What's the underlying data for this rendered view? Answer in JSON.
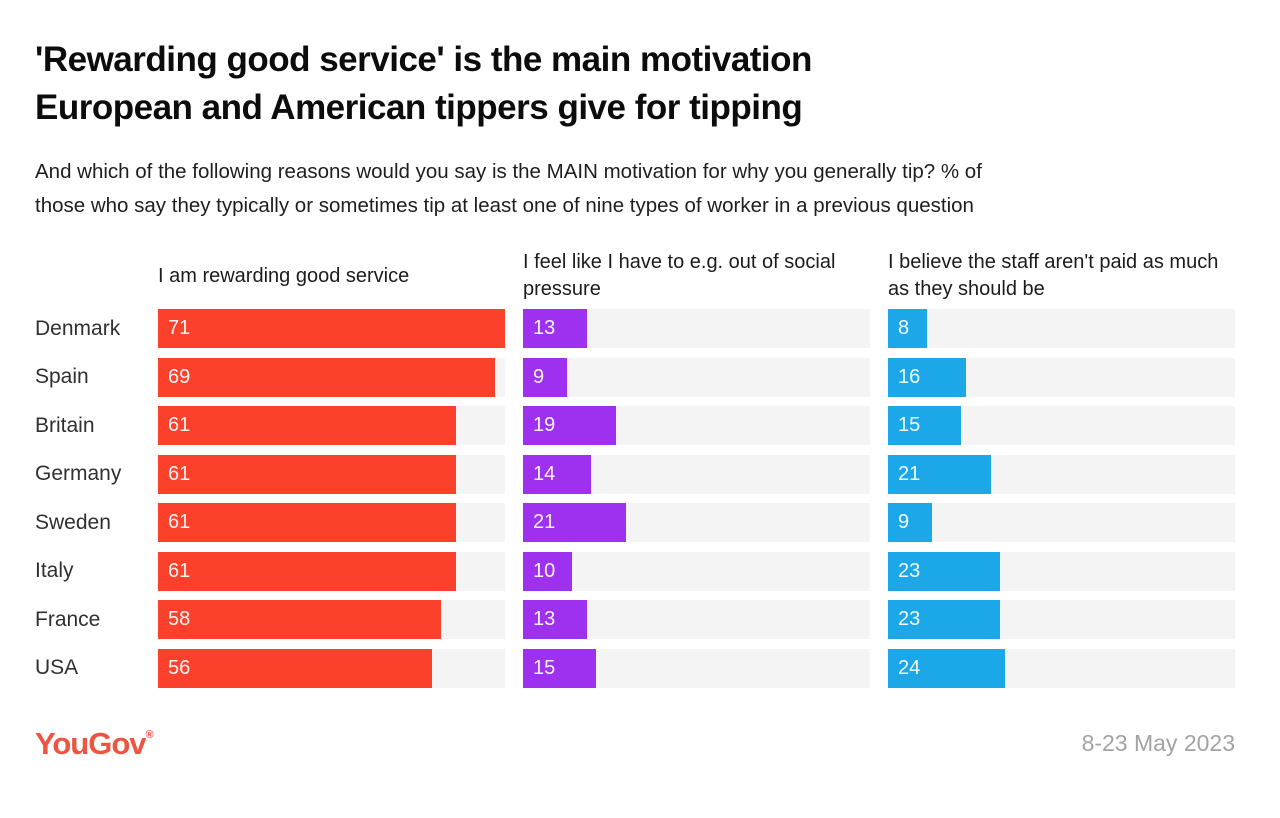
{
  "header": {
    "title": "'Rewarding good service' is the main motivation European and American tippers give for tipping",
    "title_lines": [
      "'Rewarding good service' is the main motivation",
      "European and American tippers give for tipping"
    ],
    "subtitle_lines": [
      "And which of the following reasons would you say is the MAIN motivation for why you generally tip? % of",
      "those who say they typically or sometimes tip at least one of nine types of worker in a previous question"
    ]
  },
  "chart_data": {
    "type": "bar",
    "orientation": "horizontal",
    "title": "'Rewarding good service' is the main motivation European and American tippers give for tipping",
    "subtitle": "And which of the following reasons would you say is the MAIN motivation for why you generally tip? % of those who say they typically or sometimes tip at least one of nine types of worker in a previous question",
    "categories": [
      "Denmark",
      "Spain",
      "Britain",
      "Germany",
      "Sweden",
      "Italy",
      "France",
      "USA"
    ],
    "series": [
      {
        "name": "I am rewarding good service",
        "color": "#FB412C",
        "values": [
          71,
          69,
          61,
          61,
          61,
          61,
          58,
          56
        ]
      },
      {
        "name": "I feel like I have to e.g. out of social pressure",
        "color": "#9E30F0",
        "values": [
          13,
          9,
          19,
          14,
          21,
          10,
          13,
          15
        ]
      },
      {
        "name": "I believe the staff aren't paid as much as they should be",
        "color": "#1BA7E8",
        "values": [
          8,
          16,
          15,
          21,
          9,
          23,
          23,
          24
        ]
      }
    ],
    "xlim": [
      0,
      71
    ],
    "grid": false,
    "legend": "none",
    "value_labels": "inside-start",
    "track_color": "#F4F4F4",
    "unit": "%"
  },
  "footer": {
    "logo_text": "YouGov",
    "logo_registered": "®",
    "logo_color": "#EE5442",
    "date": "8-23 May 2023"
  }
}
